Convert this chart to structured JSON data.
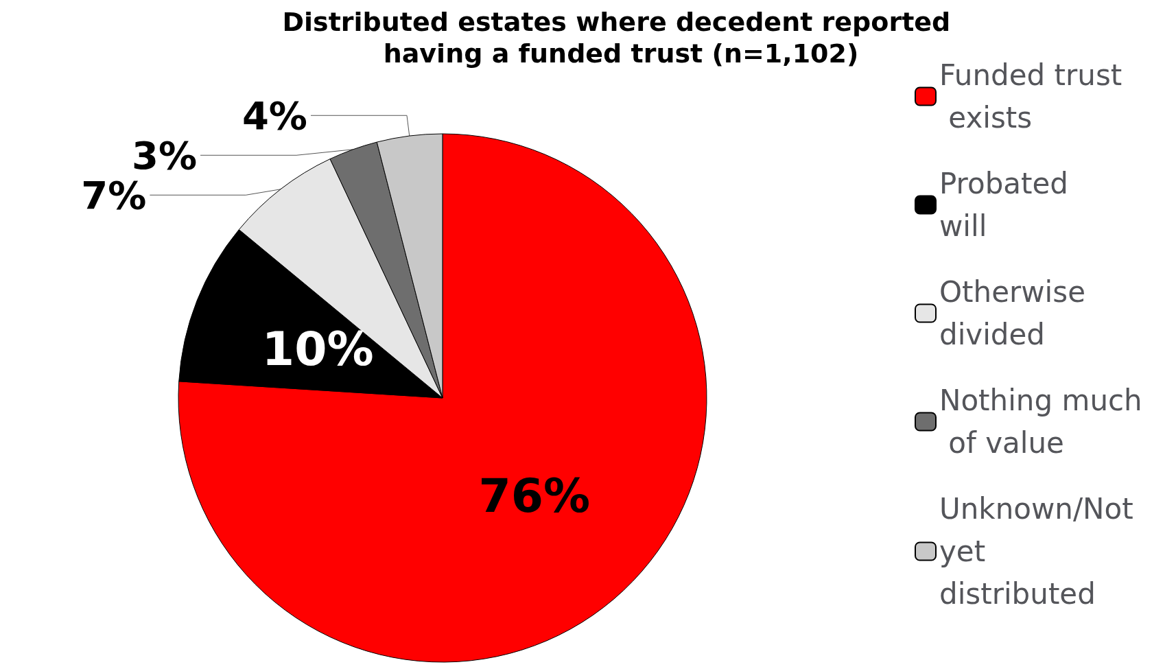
{
  "chart_data": {
    "type": "pie",
    "title": "Distributed estates where decedent reported having a funded trust (n=1,102)",
    "categories": [
      "Funded trust exists",
      "Probated will",
      "Otherwise divided",
      "Nothing much of value",
      "Unknown/Not yet distributed"
    ],
    "values": [
      76,
      10,
      7,
      3,
      4
    ],
    "colors": [
      "#ff0000",
      "#000000",
      "#e6e6e6",
      "#6e6e6e",
      "#c8c8c8"
    ],
    "value_labels": [
      "76%",
      "10%",
      "7%",
      "3%",
      "4%"
    ],
    "legend": "right"
  }
}
